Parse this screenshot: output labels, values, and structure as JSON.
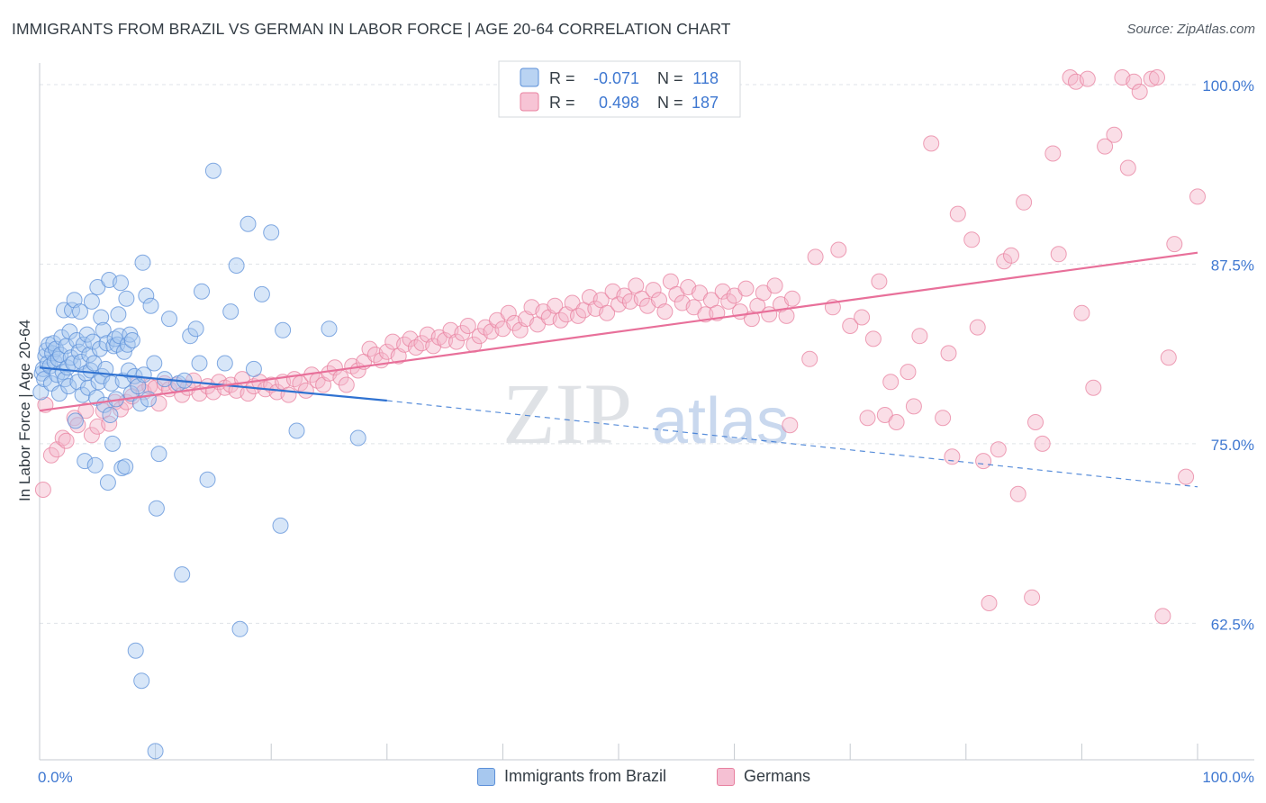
{
  "header": {
    "title": "IMMIGRANTS FROM BRAZIL VS GERMAN IN LABOR FORCE | AGE 20-64 CORRELATION CHART",
    "source": "Source: ZipAtlas.com"
  },
  "watermark": {
    "zip": "ZIP",
    "atlas": "atlas"
  },
  "colors": {
    "blue_fill": "#a7c8ef",
    "blue_stroke": "#5b8fd8",
    "blue_line": "#2f72d1",
    "pink_fill": "#f5b5ca",
    "pink_stroke": "#e8809f",
    "pink_line": "#e8709a",
    "axis_label": "#3f78d1",
    "grid": "#dfe3e8"
  },
  "chart_data": {
    "type": "scatter",
    "xlabel": "",
    "ylabel": "In Labor Force | Age 20-64",
    "xlim": [
      0,
      100
    ],
    "ylim": [
      53,
      101.5
    ],
    "x_tick_labels": [
      "0.0%",
      "100.0%"
    ],
    "y_ticks": [
      62.5,
      75.0,
      87.5,
      100.0
    ],
    "y_tick_labels": [
      "62.5%",
      "75.0%",
      "87.5%",
      "100.0%"
    ],
    "grid": true,
    "legend_position": "top-center",
    "stats": [
      {
        "r_label": "R =",
        "r_value": "-0.071",
        "n_label": "N =",
        "n_value": "118"
      },
      {
        "r_label": "R =",
        "r_value": "0.498",
        "n_label": "N =",
        "n_value": "187"
      }
    ],
    "series": [
      {
        "name": "Immigrants from Brazil",
        "trend": {
          "x": [
            0,
            30,
            100
          ],
          "y": [
            80.3,
            78.0,
            72.0
          ],
          "solid_until": 30
        },
        "points": [
          [
            0.1,
            78.6
          ],
          [
            0.2,
            79.9
          ],
          [
            0.3,
            80.2
          ],
          [
            0.4,
            79.5
          ],
          [
            0.5,
            81.1
          ],
          [
            0.6,
            81.5
          ],
          [
            0.7,
            80.6
          ],
          [
            0.8,
            81.9
          ],
          [
            0.9,
            80.4
          ],
          [
            1.0,
            79.2
          ],
          [
            1.1,
            81.3
          ],
          [
            1.2,
            82.0
          ],
          [
            1.3,
            80.7
          ],
          [
            1.4,
            81.6
          ],
          [
            1.5,
            79.8
          ],
          [
            1.6,
            80.9
          ],
          [
            1.7,
            78.5
          ],
          [
            1.8,
            81.2
          ],
          [
            1.9,
            82.4
          ],
          [
            2.0,
            80.0
          ],
          [
            2.1,
            84.3
          ],
          [
            2.2,
            79.5
          ],
          [
            2.3,
            81.8
          ],
          [
            2.4,
            80.3
          ],
          [
            2.5,
            79.0
          ],
          [
            2.6,
            82.8
          ],
          [
            2.7,
            81.0
          ],
          [
            2.8,
            84.3
          ],
          [
            2.9,
            80.6
          ],
          [
            3.0,
            85.0
          ],
          [
            3.1,
            76.6
          ],
          [
            3.2,
            82.2
          ],
          [
            3.3,
            79.3
          ],
          [
            3.4,
            81.4
          ],
          [
            3.5,
            84.2
          ],
          [
            3.6,
            80.7
          ],
          [
            3.7,
            78.4
          ],
          [
            3.8,
            81.9
          ],
          [
            3.9,
            73.8
          ],
          [
            4.0,
            79.9
          ],
          [
            4.1,
            82.6
          ],
          [
            4.2,
            78.9
          ],
          [
            4.3,
            81.2
          ],
          [
            4.4,
            80.1
          ],
          [
            4.5,
            84.9
          ],
          [
            4.6,
            82.1
          ],
          [
            4.7,
            80.6
          ],
          [
            4.8,
            73.5
          ],
          [
            4.9,
            78.2
          ],
          [
            5.0,
            85.9
          ],
          [
            5.1,
            79.3
          ],
          [
            5.2,
            81.6
          ],
          [
            5.3,
            83.8
          ],
          [
            5.4,
            79.7
          ],
          [
            5.5,
            82.9
          ],
          [
            5.6,
            77.7
          ],
          [
            5.7,
            80.2
          ],
          [
            5.8,
            82.0
          ],
          [
            5.9,
            72.3
          ],
          [
            6.0,
            86.4
          ],
          [
            6.1,
            77.0
          ],
          [
            6.2,
            79.2
          ],
          [
            6.3,
            75.0
          ],
          [
            6.4,
            81.8
          ],
          [
            6.5,
            82.3
          ],
          [
            6.6,
            78.1
          ],
          [
            6.7,
            81.9
          ],
          [
            6.8,
            84.0
          ],
          [
            6.9,
            82.5
          ],
          [
            7.0,
            86.2
          ],
          [
            7.1,
            73.3
          ],
          [
            7.2,
            79.4
          ],
          [
            7.3,
            81.4
          ],
          [
            7.4,
            73.4
          ],
          [
            7.5,
            85.1
          ],
          [
            7.6,
            81.9
          ],
          [
            7.7,
            80.1
          ],
          [
            7.8,
            82.6
          ],
          [
            7.9,
            78.5
          ],
          [
            8.0,
            82.2
          ],
          [
            8.2,
            79.7
          ],
          [
            8.3,
            60.6
          ],
          [
            8.5,
            79.0
          ],
          [
            8.7,
            77.8
          ],
          [
            8.8,
            58.5
          ],
          [
            8.9,
            87.6
          ],
          [
            9.0,
            79.8
          ],
          [
            9.2,
            85.3
          ],
          [
            9.4,
            78.1
          ],
          [
            9.6,
            84.6
          ],
          [
            9.9,
            80.6
          ],
          [
            10.0,
            53.6
          ],
          [
            10.1,
            70.5
          ],
          [
            10.3,
            74.3
          ],
          [
            10.8,
            79.5
          ],
          [
            11.2,
            83.7
          ],
          [
            12.0,
            79.2
          ],
          [
            12.3,
            65.9
          ],
          [
            12.5,
            79.4
          ],
          [
            13.0,
            82.5
          ],
          [
            13.5,
            83.0
          ],
          [
            13.8,
            80.6
          ],
          [
            14.0,
            85.6
          ],
          [
            14.5,
            72.5
          ],
          [
            15.0,
            94.0
          ],
          [
            16.0,
            80.6
          ],
          [
            16.5,
            84.2
          ],
          [
            17.0,
            87.4
          ],
          [
            17.3,
            62.1
          ],
          [
            18.0,
            90.3
          ],
          [
            18.5,
            80.2
          ],
          [
            19.2,
            85.4
          ],
          [
            20.0,
            89.7
          ],
          [
            20.8,
            69.3
          ],
          [
            21.0,
            82.9
          ],
          [
            22.2,
            75.9
          ],
          [
            25.0,
            83.0
          ],
          [
            27.5,
            75.4
          ]
        ]
      },
      {
        "name": "Germans",
        "trend": {
          "x": [
            0,
            100
          ],
          "y": [
            77.3,
            88.3
          ],
          "solid_until": 100
        },
        "points": [
          [
            0.3,
            71.8
          ],
          [
            0.5,
            77.7
          ],
          [
            1.0,
            74.2
          ],
          [
            1.5,
            74.6
          ],
          [
            2.0,
            75.4
          ],
          [
            2.3,
            75.2
          ],
          [
            3.0,
            76.8
          ],
          [
            3.3,
            76.3
          ],
          [
            4.0,
            77.3
          ],
          [
            4.5,
            75.6
          ],
          [
            5.0,
            76.2
          ],
          [
            5.5,
            77.3
          ],
          [
            6.0,
            76.4
          ],
          [
            6.5,
            77.9
          ],
          [
            7.0,
            77.4
          ],
          [
            7.5,
            77.9
          ],
          [
            8.0,
            78.3
          ],
          [
            8.5,
            79.2
          ],
          [
            9.0,
            78.6
          ],
          [
            9.5,
            79.0
          ],
          [
            10.0,
            78.9
          ],
          [
            10.3,
            77.8
          ],
          [
            10.8,
            79.2
          ],
          [
            11.2,
            78.8
          ],
          [
            11.8,
            79.1
          ],
          [
            12.3,
            78.4
          ],
          [
            12.8,
            78.9
          ],
          [
            13.3,
            79.4
          ],
          [
            13.8,
            78.5
          ],
          [
            14.5,
            79.0
          ],
          [
            15.0,
            78.6
          ],
          [
            15.5,
            79.3
          ],
          [
            16.0,
            78.9
          ],
          [
            16.5,
            79.1
          ],
          [
            17.0,
            78.7
          ],
          [
            17.5,
            79.5
          ],
          [
            18.0,
            78.5
          ],
          [
            18.5,
            79.0
          ],
          [
            19.0,
            79.3
          ],
          [
            19.5,
            78.8
          ],
          [
            20.0,
            79.1
          ],
          [
            20.5,
            78.6
          ],
          [
            21.0,
            79.3
          ],
          [
            21.5,
            78.4
          ],
          [
            22.0,
            79.5
          ],
          [
            22.5,
            79.2
          ],
          [
            23.0,
            78.7
          ],
          [
            23.5,
            79.8
          ],
          [
            24.0,
            79.4
          ],
          [
            24.5,
            79.1
          ],
          [
            25.0,
            79.9
          ],
          [
            25.5,
            80.3
          ],
          [
            26.0,
            79.6
          ],
          [
            26.5,
            79.1
          ],
          [
            27.0,
            80.4
          ],
          [
            27.5,
            80.1
          ],
          [
            28.0,
            80.7
          ],
          [
            28.5,
            81.6
          ],
          [
            29.0,
            81.2
          ],
          [
            29.5,
            80.8
          ],
          [
            30.0,
            81.4
          ],
          [
            30.5,
            82.1
          ],
          [
            31.0,
            81.1
          ],
          [
            31.5,
            81.9
          ],
          [
            32.0,
            82.3
          ],
          [
            32.5,
            81.7
          ],
          [
            33.0,
            82.0
          ],
          [
            33.5,
            82.6
          ],
          [
            34.0,
            81.8
          ],
          [
            34.5,
            82.4
          ],
          [
            35.0,
            82.2
          ],
          [
            35.5,
            82.9
          ],
          [
            36.0,
            82.1
          ],
          [
            36.5,
            82.7
          ],
          [
            37.0,
            83.2
          ],
          [
            37.5,
            81.9
          ],
          [
            38.0,
            82.5
          ],
          [
            38.5,
            83.1
          ],
          [
            39.0,
            82.8
          ],
          [
            39.5,
            83.6
          ],
          [
            40.0,
            83.0
          ],
          [
            40.5,
            84.1
          ],
          [
            41.0,
            83.4
          ],
          [
            41.5,
            82.9
          ],
          [
            42.0,
            83.7
          ],
          [
            42.5,
            84.5
          ],
          [
            43.0,
            83.3
          ],
          [
            43.5,
            84.2
          ],
          [
            44.0,
            83.8
          ],
          [
            44.5,
            84.6
          ],
          [
            45.0,
            83.6
          ],
          [
            45.5,
            84.0
          ],
          [
            46.0,
            84.8
          ],
          [
            46.5,
            83.9
          ],
          [
            47.0,
            84.3
          ],
          [
            47.5,
            85.2
          ],
          [
            48.0,
            84.4
          ],
          [
            48.5,
            85.0
          ],
          [
            49.0,
            84.1
          ],
          [
            49.5,
            85.6
          ],
          [
            50.0,
            84.7
          ],
          [
            50.5,
            85.3
          ],
          [
            51.0,
            84.9
          ],
          [
            51.5,
            86.0
          ],
          [
            52.0,
            85.1
          ],
          [
            52.5,
            84.6
          ],
          [
            53.0,
            85.7
          ],
          [
            53.5,
            85.0
          ],
          [
            54.0,
            84.2
          ],
          [
            54.5,
            86.3
          ],
          [
            55.0,
            85.4
          ],
          [
            55.5,
            84.8
          ],
          [
            56.0,
            85.9
          ],
          [
            56.5,
            84.5
          ],
          [
            57.0,
            85.5
          ],
          [
            57.5,
            84.0
          ],
          [
            58.0,
            85.0
          ],
          [
            58.5,
            84.1
          ],
          [
            59.0,
            85.6
          ],
          [
            59.5,
            84.9
          ],
          [
            60.0,
            85.3
          ],
          [
            60.5,
            84.2
          ],
          [
            61.0,
            85.8
          ],
          [
            61.5,
            83.7
          ],
          [
            62.0,
            84.6
          ],
          [
            62.5,
            85.5
          ],
          [
            63.0,
            84.0
          ],
          [
            63.5,
            86.0
          ],
          [
            64.0,
            84.7
          ],
          [
            64.5,
            83.9
          ],
          [
            65.0,
            85.1
          ],
          [
            64.8,
            76.3
          ],
          [
            66.5,
            80.9
          ],
          [
            67.0,
            88.0
          ],
          [
            68.5,
            84.5
          ],
          [
            69.0,
            88.5
          ],
          [
            70.0,
            83.2
          ],
          [
            71.0,
            83.8
          ],
          [
            71.5,
            76.8
          ],
          [
            72.0,
            82.3
          ],
          [
            72.5,
            86.3
          ],
          [
            73.0,
            77.0
          ],
          [
            73.5,
            79.3
          ],
          [
            74.0,
            76.5
          ],
          [
            75.0,
            80.0
          ],
          [
            75.5,
            77.6
          ],
          [
            76.0,
            82.5
          ],
          [
            77.0,
            95.9
          ],
          [
            78.0,
            76.8
          ],
          [
            78.5,
            81.3
          ],
          [
            78.8,
            74.1
          ],
          [
            79.3,
            91.0
          ],
          [
            80.5,
            89.2
          ],
          [
            81.0,
            83.1
          ],
          [
            81.5,
            73.8
          ],
          [
            82.0,
            63.9
          ],
          [
            82.8,
            74.6
          ],
          [
            83.3,
            87.7
          ],
          [
            83.9,
            88.1
          ],
          [
            84.5,
            71.5
          ],
          [
            85.0,
            91.8
          ],
          [
            85.7,
            64.3
          ],
          [
            86.0,
            76.5
          ],
          [
            86.6,
            75.0
          ],
          [
            87.5,
            95.2
          ],
          [
            88.0,
            88.2
          ],
          [
            89.0,
            100.5
          ],
          [
            89.5,
            100.2
          ],
          [
            90.0,
            84.1
          ],
          [
            90.5,
            100.4
          ],
          [
            91.0,
            78.9
          ],
          [
            92.0,
            95.7
          ],
          [
            92.8,
            96.5
          ],
          [
            93.5,
            100.5
          ],
          [
            94.0,
            94.2
          ],
          [
            94.5,
            100.2
          ],
          [
            95.0,
            99.5
          ],
          [
            96.0,
            100.4
          ],
          [
            96.5,
            100.5
          ],
          [
            97.0,
            63.0
          ],
          [
            97.5,
            81.0
          ],
          [
            98.0,
            88.9
          ],
          [
            100.0,
            92.2
          ],
          [
            99.0,
            72.7
          ]
        ]
      }
    ]
  },
  "legend": {
    "items": [
      {
        "label": "Immigrants from Brazil"
      },
      {
        "label": "Germans"
      }
    ]
  }
}
